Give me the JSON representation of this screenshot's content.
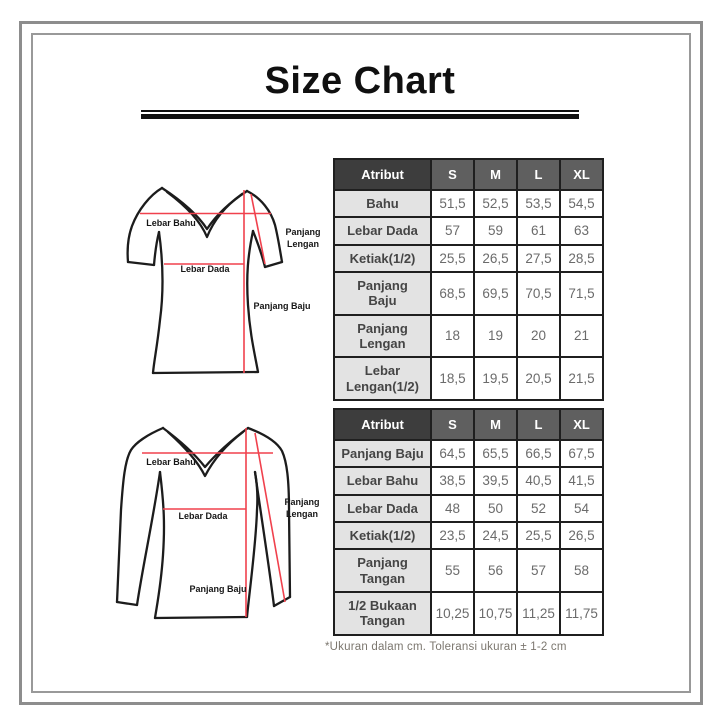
{
  "title": "Size Chart",
  "footnote": "*Ukuran dalam cm. Toleransi ukuran ± 1-2 cm",
  "tables": [
    {
      "name": "short-sleeve-size-table",
      "headers": [
        "Atribut",
        "S",
        "M",
        "L",
        "XL"
      ],
      "rows": [
        {
          "label": "Bahu",
          "values": [
            "51,5",
            "52,5",
            "53,5",
            "54,5"
          ]
        },
        {
          "label": "Lebar Dada",
          "values": [
            "57",
            "59",
            "61",
            "63"
          ]
        },
        {
          "label": "Ketiak(1/2)",
          "values": [
            "25,5",
            "26,5",
            "27,5",
            "28,5"
          ]
        },
        {
          "label": "Panjang\nBaju",
          "values": [
            "68,5",
            "69,5",
            "70,5",
            "71,5"
          ]
        },
        {
          "label": "Panjang\nLengan",
          "values": [
            "18",
            "19",
            "20",
            "21"
          ]
        },
        {
          "label": "Lebar\nLengan(1/2)",
          "values": [
            "18,5",
            "19,5",
            "20,5",
            "21,5"
          ]
        }
      ]
    },
    {
      "name": "long-sleeve-size-table",
      "headers": [
        "Atribut",
        "S",
        "M",
        "L",
        "XL"
      ],
      "rows": [
        {
          "label": "Panjang Baju",
          "values": [
            "64,5",
            "65,5",
            "66,5",
            "67,5"
          ]
        },
        {
          "label": "Lebar Bahu",
          "values": [
            "38,5",
            "39,5",
            "40,5",
            "41,5"
          ]
        },
        {
          "label": "Lebar Dada",
          "values": [
            "48",
            "50",
            "52",
            "54"
          ]
        },
        {
          "label": "Ketiak(1/2)",
          "values": [
            "23,5",
            "24,5",
            "25,5",
            "26,5"
          ]
        },
        {
          "label": "Panjang\nTangan",
          "values": [
            "55",
            "56",
            "57",
            "58"
          ]
        },
        {
          "label": "1/2 Bukaan\nTangan",
          "values": [
            "10,25",
            "10,75",
            "11,25",
            "11,75"
          ]
        }
      ]
    }
  ],
  "diagrams": [
    {
      "name": "short-sleeve-shirt",
      "labels": {
        "shoulder": "Lebar Bahu",
        "chest": "Lebar Dada",
        "sleeve_line1": "Panjang",
        "sleeve_line2": "Lengan",
        "length": "Panjang Baju"
      }
    },
    {
      "name": "long-sleeve-shirt",
      "labels": {
        "shoulder": "Lebar Bahu",
        "chest": "Lebar Dada",
        "sleeve_line1": "Panjang",
        "sleeve_line2": "Lengan",
        "length": "Panjang Baju"
      }
    }
  ],
  "colors": {
    "header_attr_bg": "#3d3d3d",
    "header_size_bg": "#5f5f5f",
    "label_cell_bg": "#e3e3e3",
    "table_border": "#1f1f1f",
    "label_text": "#454545",
    "value_text": "#6b6b6b",
    "measure_line": "#f0414d",
    "outline": "#1c1c1c",
    "frame_gray": "#8d8d8d",
    "footnote_text": "#7c776f"
  }
}
